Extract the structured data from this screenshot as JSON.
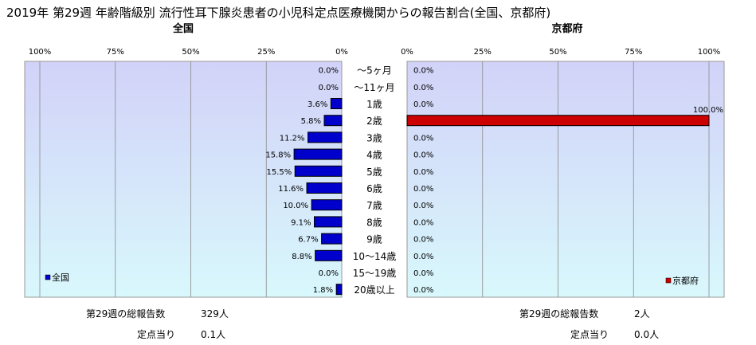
{
  "title": "2019年 第29週 年齢階級別 流行性耳下腺炎患者の小児科定点医療機関からの報告割合(全国、京都府)",
  "colors": {
    "national": "#0000cc",
    "kyoto": "#cc0000",
    "plot_top": "#d2d2f8",
    "plot_bottom": "#d8f8fc"
  },
  "chart_data": [
    {
      "type": "bar",
      "orientation": "horizontal",
      "direction": "right-to-left",
      "title": "全国",
      "xlim": [
        0,
        100
      ],
      "ticks": [
        "100%",
        "75%",
        "50%",
        "25%",
        "0%"
      ],
      "tick_values": [
        100,
        75,
        50,
        25,
        0
      ],
      "categories": [
        "～5ヶ月",
        "～11ヶ月",
        "1歳",
        "2歳",
        "3歳",
        "4歳",
        "5歳",
        "6歳",
        "7歳",
        "8歳",
        "9歳",
        "10～14歳",
        "15～19歳",
        "20歳以上"
      ],
      "values": [
        0.0,
        0.0,
        3.6,
        5.8,
        11.2,
        15.8,
        15.5,
        11.6,
        10.0,
        9.1,
        6.7,
        8.8,
        0.0,
        1.8
      ],
      "value_labels": [
        "0.0%",
        "0.0%",
        "3.6%",
        "5.8%",
        "11.2%",
        "15.8%",
        "15.5%",
        "11.6%",
        "10.0%",
        "9.1%",
        "6.7%",
        "8.8%",
        "0.0%",
        "1.8%"
      ],
      "legend": "全国",
      "legend_position": "bottom-left",
      "grid": true,
      "summary": {
        "total_label": "第29週の総報告数",
        "total_value": "329人",
        "per_site_label": "定点当り",
        "per_site_value": "0.1人"
      }
    },
    {
      "type": "bar",
      "orientation": "horizontal",
      "direction": "left-to-right",
      "title": "京都府",
      "xlim": [
        0,
        100
      ],
      "ticks": [
        "0%",
        "25%",
        "50%",
        "75%",
        "100%"
      ],
      "tick_values": [
        0,
        25,
        50,
        75,
        100
      ],
      "categories": [
        "～5ヶ月",
        "～11ヶ月",
        "1歳",
        "2歳",
        "3歳",
        "4歳",
        "5歳",
        "6歳",
        "7歳",
        "8歳",
        "9歳",
        "10～14歳",
        "15～19歳",
        "20歳以上"
      ],
      "values": [
        0.0,
        0.0,
        0.0,
        100.0,
        0.0,
        0.0,
        0.0,
        0.0,
        0.0,
        0.0,
        0.0,
        0.0,
        0.0,
        0.0
      ],
      "value_labels": [
        "0.0%",
        "0.0%",
        "0.0%",
        "100.0%",
        "0.0%",
        "0.0%",
        "0.0%",
        "0.0%",
        "0.0%",
        "0.0%",
        "0.0%",
        "0.0%",
        "0.0%",
        "0.0%"
      ],
      "legend": "京都府",
      "legend_position": "bottom-right",
      "grid": true,
      "summary": {
        "total_label": "第29週の総報告数",
        "total_value": "2人",
        "per_site_label": "定点当り",
        "per_site_value": "0.0人"
      }
    }
  ]
}
